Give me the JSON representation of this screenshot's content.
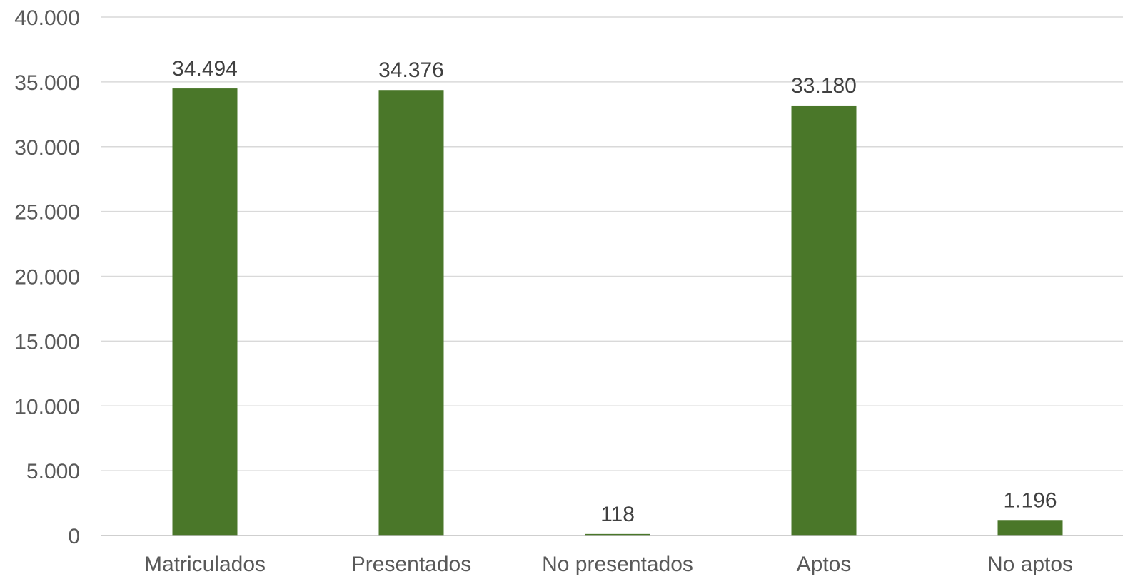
{
  "chart_data": {
    "type": "bar",
    "title": "",
    "xlabel": "",
    "ylabel": "",
    "categories": [
      "Matriculados",
      "Presentados",
      "No presentados",
      "Aptos",
      "No aptos"
    ],
    "values": [
      34494,
      34376,
      118,
      33180,
      1196
    ],
    "value_labels": [
      "34.494",
      "34.376",
      "118",
      "33.180",
      "1.196"
    ],
    "ylim": [
      0,
      40000
    ],
    "yticks": [
      0,
      5000,
      10000,
      15000,
      20000,
      25000,
      30000,
      35000,
      40000
    ],
    "ytick_labels": [
      "0",
      "5.000",
      "10.000",
      "15.000",
      "20.000",
      "25.000",
      "30.000",
      "35.000",
      "40.000"
    ],
    "grid": true,
    "legend": "none",
    "bar_color": "#4a7729"
  }
}
